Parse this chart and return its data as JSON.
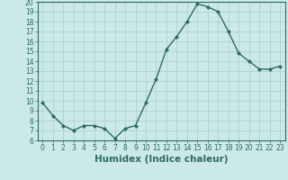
{
  "x": [
    0,
    1,
    2,
    3,
    4,
    5,
    6,
    7,
    8,
    9,
    10,
    11,
    12,
    13,
    14,
    15,
    16,
    17,
    18,
    19,
    20,
    21,
    22,
    23
  ],
  "y": [
    9.8,
    8.5,
    7.5,
    7.0,
    7.5,
    7.5,
    7.2,
    6.2,
    7.2,
    7.5,
    9.8,
    12.2,
    15.2,
    16.5,
    18.0,
    19.8,
    19.5,
    19.0,
    17.0,
    14.8,
    14.0,
    13.2,
    13.2,
    13.5
  ],
  "line_color": "#2e6b5e",
  "marker": "D",
  "marker_size": 2.0,
  "bg_color": "#cce9e9",
  "grid_color": "#b0d0d0",
  "xlabel": "Humidex (Indice chaleur)",
  "xlim": [
    -0.5,
    23.5
  ],
  "ylim": [
    6,
    20
  ],
  "yticks": [
    6,
    7,
    8,
    9,
    10,
    11,
    12,
    13,
    14,
    15,
    16,
    17,
    18,
    19,
    20
  ],
  "xticks": [
    0,
    1,
    2,
    3,
    4,
    5,
    6,
    7,
    8,
    9,
    10,
    11,
    12,
    13,
    14,
    15,
    16,
    17,
    18,
    19,
    20,
    21,
    22,
    23
  ],
  "tick_color": "#2e6b5e",
  "tick_fontsize": 5.5,
  "xlabel_fontsize": 7.5,
  "line_width": 1.0
}
